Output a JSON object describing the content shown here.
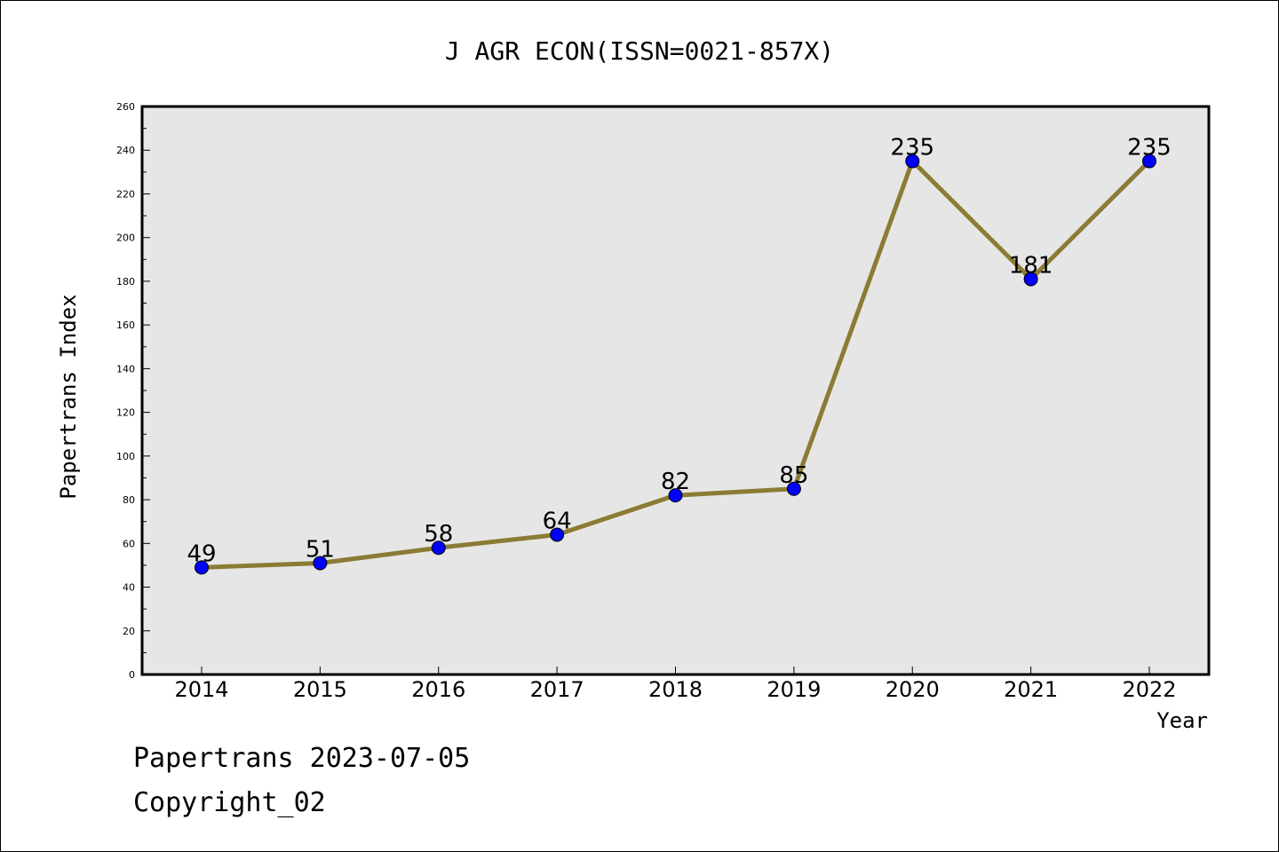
{
  "chart_data": {
    "type": "line",
    "title": "J AGR ECON(ISSN=0021-857X)",
    "xlabel": "Year",
    "ylabel": "Papertrans Index",
    "categories": [
      "2014",
      "2015",
      "2016",
      "2017",
      "2018",
      "2019",
      "2020",
      "2021",
      "2022"
    ],
    "series": [
      {
        "values": [
          49,
          51,
          58,
          64,
          82,
          85,
          235,
          181,
          235
        ]
      }
    ],
    "data_labels": [
      "49",
      "51",
      "58",
      "64",
      "82",
      "85",
      "235",
      "181",
      "235"
    ],
    "ylim": [
      0,
      260
    ],
    "yticks": [
      "0",
      "20",
      "40",
      "60",
      "80",
      "100",
      "120",
      "140",
      "160",
      "180",
      "200",
      "220",
      "240",
      "260"
    ],
    "grid": false,
    "plot_background": "#e6e6e6",
    "line_color": "#8b7b35",
    "marker_color": "#0000ff"
  },
  "footer": {
    "source_date": "Papertrans 2023-07-05",
    "copyright": "Copyright_02"
  }
}
